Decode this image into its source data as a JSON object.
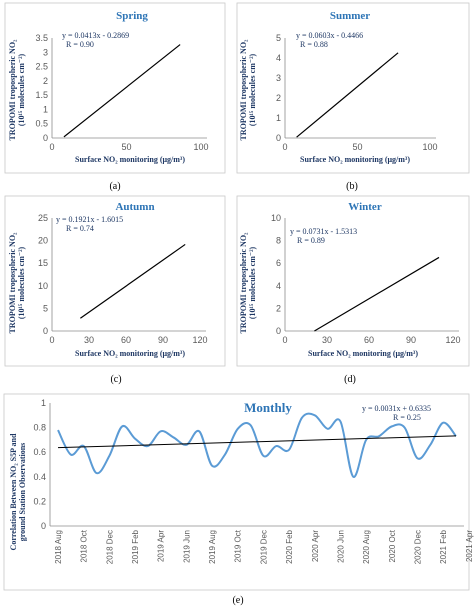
{
  "panels": [
    {
      "id": "spring",
      "title": "Spring",
      "type": "line",
      "equation": "y = 0.0413x - 0.2869",
      "r_label": "R = 0.90",
      "ylabel_line1": "TROPOMI tropospheric NO₂",
      "ylabel_line2": "(10¹⁵ molecules cm⁻²)",
      "xlabel": "Surface NO₂ monitoring (μg/m³)",
      "panel_label": "(a)",
      "xticks": [
        0,
        50,
        100
      ],
      "yticks": [
        0,
        0.5,
        1,
        1.5,
        2,
        2.5,
        3,
        3.5
      ],
      "ytick_labels": [
        "0",
        "0.5",
        "1",
        "1.5",
        "2",
        "2.5",
        "3",
        "3.5"
      ],
      "xlim": [
        0,
        100
      ],
      "ylim": [
        0,
        3.5
      ],
      "line_x": [
        8,
        86
      ],
      "line_y": [
        0.04,
        3.27
      ]
    },
    {
      "id": "summer",
      "title": "Summer",
      "type": "line",
      "equation": "y = 0.0603x - 0.4466",
      "r_label": "R = 0.88",
      "ylabel_line1": "TROPOMI tropospheric NO₂",
      "ylabel_line2": "(10¹⁵ molecules cm⁻²)",
      "xlabel": "Surface NO₂ monitoring (μg/m³)",
      "panel_label": "(b)",
      "xticks": [
        0,
        50,
        100
      ],
      "yticks": [
        0,
        1,
        2,
        3,
        4,
        5
      ],
      "ytick_labels": [
        "0",
        "1",
        "2",
        "3",
        "4",
        "5"
      ],
      "xlim": [
        0,
        100
      ],
      "ylim": [
        0,
        5
      ],
      "line_x": [
        8,
        78
      ],
      "line_y": [
        0.04,
        4.26
      ]
    },
    {
      "id": "autumn",
      "title": "Autumn",
      "type": "line",
      "equation": "y = 0.1921x - 1.6015",
      "r_label": "R = 0.74",
      "ylabel_line1": "TROPOMI tropospheric NO₂",
      "ylabel_line2": "(10¹⁵ molecules cm⁻²)",
      "xlabel": "Surface NO₂ monitoring (μg/m³)",
      "panel_label": "(c)",
      "xticks": [
        0,
        30,
        60,
        90,
        120
      ],
      "yticks": [
        0,
        5,
        10,
        15,
        20,
        25
      ],
      "ytick_labels": [
        "0",
        "5",
        "10",
        "15",
        "20",
        "25"
      ],
      "xlim": [
        0,
        120
      ],
      "ylim": [
        0,
        25
      ],
      "line_x": [
        23,
        108
      ],
      "line_y": [
        2.82,
        19.15
      ]
    },
    {
      "id": "winter",
      "title": "Winter",
      "type": "line",
      "equation": "y = 0.0731x - 1.5313",
      "r_label": "R = 0.89",
      "ylabel_line1": "TROPOMI tropospheric NO₂",
      "ylabel_line2": "(10¹⁵ molecules cm⁻²)",
      "xlabel": "Surface NO₂ monitoring (μg/m³)",
      "panel_label": "(d)",
      "xticks": [
        0,
        30,
        60,
        90,
        120
      ],
      "yticks": [
        0,
        2,
        4,
        6,
        8,
        10
      ],
      "ytick_labels": [
        "0",
        "2",
        "4",
        "6",
        "8",
        "10"
      ],
      "xlim": [
        0,
        120
      ],
      "ylim": [
        0,
        10
      ],
      "line_x": [
        21,
        110
      ],
      "line_y": [
        0.0,
        6.51
      ]
    }
  ],
  "monthly": {
    "title": "Monthly",
    "type": "line",
    "equation": "y = 0.0031x + 0.6335",
    "r_label": "R = 0.25",
    "ylabel_line1": "Correlation Between NO₂ S5P and",
    "ylabel_line2": "ground Station Observations",
    "panel_label": "(e)",
    "yticks": [
      0,
      0.2,
      0.4,
      0.6,
      0.8,
      1
    ],
    "ytick_labels": [
      "0",
      "0.2",
      "0.4",
      "0.6",
      "0.8",
      "1"
    ],
    "ylim": [
      0,
      1
    ],
    "x_tick_labels": [
      "2018 Aug",
      "2018 Oct",
      "2018 Dec",
      "2019 Feb",
      "2019 Apr",
      "2019 Jun",
      "2019 Aug",
      "2019 Oct",
      "2019 Dec",
      "2020 Feb",
      "2020 Apr",
      "2020 Jun",
      "2020 Aug",
      "2020 Oct",
      "2020 Dec",
      "2021 Feb",
      "2021 Apr",
      "2021 Jun"
    ],
    "values": [
      0.78,
      0.58,
      0.65,
      0.43,
      0.57,
      0.81,
      0.71,
      0.65,
      0.77,
      0.72,
      0.66,
      0.77,
      0.49,
      0.58,
      0.79,
      0.82,
      0.57,
      0.65,
      0.62,
      0.88,
      0.9,
      0.79,
      0.85,
      0.4,
      0.7,
      0.73,
      0.81,
      0.8,
      0.55,
      0.66,
      0.84,
      0.73
    ],
    "trend_start": 0.637,
    "trend_end": 0.733
  },
  "colors": {
    "title": "#2e75b6",
    "equation": "#1f3864",
    "monthly_line": "#5b9bd5",
    "regression_line": "#000000"
  }
}
